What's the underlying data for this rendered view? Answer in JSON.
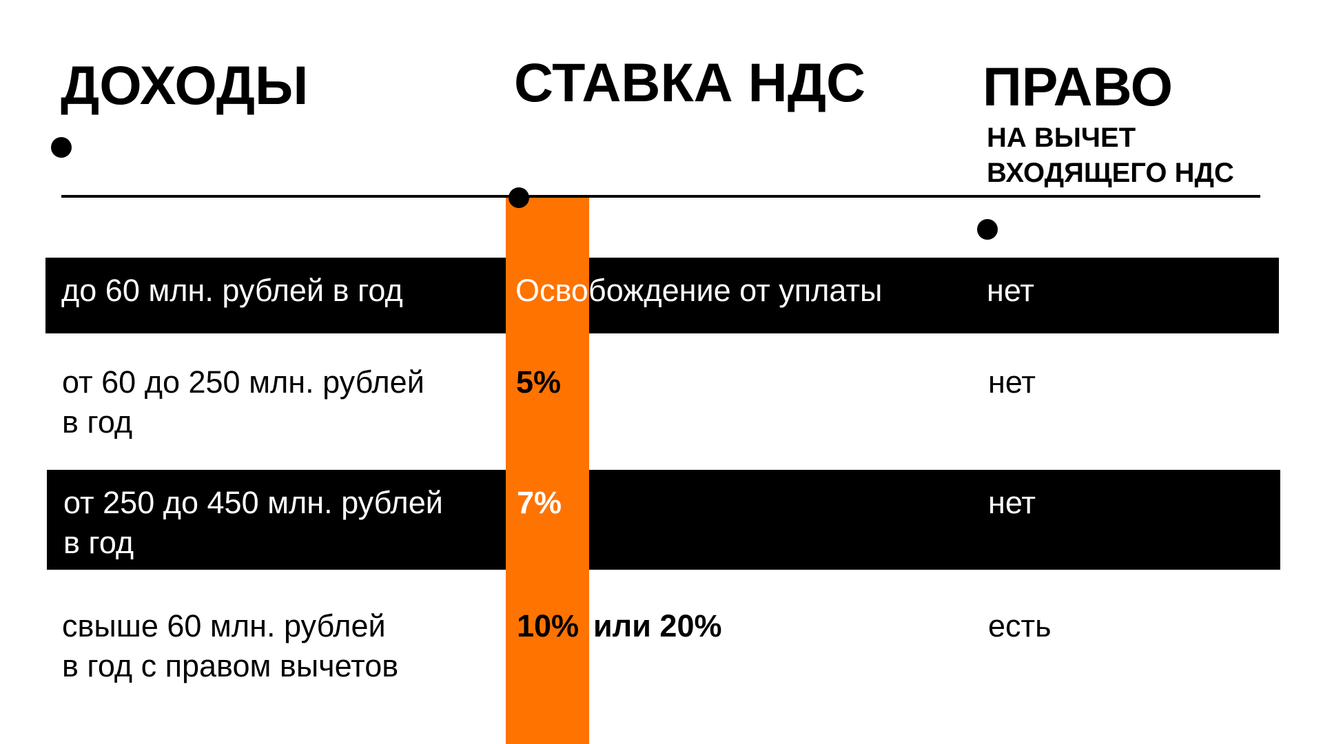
{
  "header": {
    "income_title": "ДОХОДЫ",
    "vat_rate_title": "СТАВКА НДС",
    "right_title": "ПРАВО",
    "right_subtitle_line1": "НА ВЫЧЕТ",
    "right_subtitle_line2": "ВХОДЯЩЕГО НДС"
  },
  "colors": {
    "accent": "#ff7300",
    "dark_band": "#000000",
    "background": "#ffffff"
  },
  "rows": [
    {
      "income_line1": "до 60 млн. рублей в год",
      "income_line2": "",
      "rate": "Освобождение от уплаты",
      "rate_extra": "",
      "deduction": "нет"
    },
    {
      "income_line1": "от 60 до 250 млн. рублей",
      "income_line2": "в год",
      "rate": "5%",
      "rate_extra": "",
      "deduction": "нет"
    },
    {
      "income_line1": "от 250 до 450 млн. рублей",
      "income_line2": "в год",
      "rate": "7%",
      "rate_extra": "",
      "deduction": "нет"
    },
    {
      "income_line1": "свыше 60 млн. рублей",
      "income_line2": "в год с правом вычетов",
      "rate": "10%",
      "rate_extra": "или 20%",
      "deduction": "есть"
    }
  ]
}
